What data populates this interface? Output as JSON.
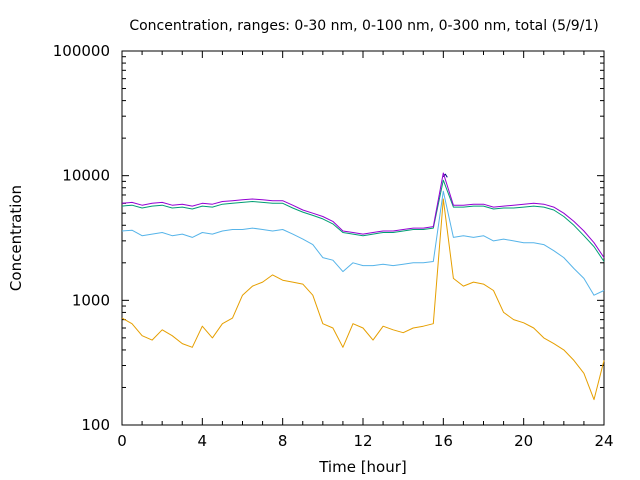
{
  "chart_data": {
    "type": "line",
    "title": "Concentration, ranges: 0-30 nm, 0-100 nm, 0-300 nm, total (5/9/1)",
    "xlabel": "Time [hour]",
    "ylabel": "Concentration",
    "xlim": [
      0,
      24
    ],
    "ylim": [
      100,
      100000
    ],
    "yscale": "log",
    "grid": false,
    "legend": "none",
    "x_ticks": [
      0,
      4,
      8,
      12,
      16,
      20,
      24
    ],
    "x_tick_labels": [
      "0",
      "4",
      "8",
      "12",
      "16",
      "20",
      "24"
    ],
    "y_ticks": [
      100,
      1000,
      10000,
      100000
    ],
    "y_tick_labels": [
      "100",
      "1000",
      "10000",
      "100000"
    ],
    "series": [
      {
        "color": "#e69f00",
        "x": [
          0,
          0.5,
          1,
          1.5,
          2,
          2.5,
          3,
          3.5,
          4,
          4.5,
          5,
          5.5,
          6,
          6.5,
          7,
          7.5,
          8,
          8.5,
          9,
          9.5,
          10,
          10.5,
          11,
          11.5,
          12,
          12.5,
          13,
          13.5,
          14,
          14.5,
          15,
          15.5,
          16,
          16.5,
          17,
          17.5,
          18,
          18.5,
          19,
          19.5,
          20,
          20.5,
          21,
          21.5,
          22,
          22.5,
          23,
          23.5,
          24
        ],
        "y": [
          720,
          650,
          520,
          480,
          580,
          520,
          450,
          420,
          620,
          500,
          650,
          720,
          1100,
          1300,
          1400,
          1600,
          1450,
          1400,
          1350,
          1100,
          650,
          600,
          420,
          650,
          600,
          480,
          620,
          580,
          550,
          600,
          620,
          650,
          6500,
          1500,
          1300,
          1400,
          1350,
          1200,
          800,
          700,
          660,
          600,
          500,
          450,
          400,
          330,
          260,
          160,
          330
        ]
      },
      {
        "color": "#56b4e9",
        "x": [
          0,
          0.5,
          1,
          1.5,
          2,
          2.5,
          3,
          3.5,
          4,
          4.5,
          5,
          5.5,
          6,
          6.5,
          7,
          7.5,
          8,
          8.5,
          9,
          9.5,
          10,
          10.5,
          11,
          11.5,
          12,
          12.5,
          13,
          13.5,
          14,
          14.5,
          15,
          15.5,
          16,
          16.5,
          17,
          17.5,
          18,
          18.5,
          19,
          19.5,
          20,
          20.5,
          21,
          21.5,
          22,
          22.5,
          23,
          23.5,
          24
        ],
        "y": [
          3600,
          3650,
          3300,
          3400,
          3500,
          3300,
          3400,
          3200,
          3500,
          3400,
          3600,
          3700,
          3700,
          3800,
          3700,
          3600,
          3700,
          3400,
          3100,
          2800,
          2200,
          2100,
          1700,
          2000,
          1900,
          1900,
          1950,
          1900,
          1950,
          2000,
          2000,
          2050,
          7500,
          3200,
          3300,
          3200,
          3300,
          3000,
          3100,
          3000,
          2900,
          2900,
          2800,
          2500,
          2200,
          1800,
          1500,
          1100,
          1200
        ]
      },
      {
        "color": "#009e73",
        "x": [
          0,
          0.5,
          1,
          1.5,
          2,
          2.5,
          3,
          3.5,
          4,
          4.5,
          5,
          5.5,
          6,
          6.5,
          7,
          7.5,
          8,
          8.5,
          9,
          9.5,
          10,
          10.5,
          11,
          11.5,
          12,
          12.5,
          13,
          13.5,
          14,
          14.5,
          15,
          15.5,
          16,
          16.5,
          17,
          17.5,
          18,
          18.5,
          19,
          19.5,
          20,
          20.5,
          21,
          21.5,
          22,
          22.5,
          23,
          23.5,
          24
        ],
        "y": [
          5700,
          5800,
          5500,
          5700,
          5800,
          5500,
          5600,
          5400,
          5700,
          5600,
          5900,
          6000,
          6100,
          6200,
          6100,
          6000,
          6000,
          5500,
          5100,
          4800,
          4500,
          4100,
          3500,
          3400,
          3300,
          3400,
          3500,
          3500,
          3600,
          3700,
          3700,
          3800,
          9200,
          5600,
          5600,
          5700,
          5700,
          5400,
          5500,
          5500,
          5600,
          5700,
          5600,
          5300,
          4700,
          4000,
          3300,
          2700,
          2050
        ]
      },
      {
        "color": "#000080",
        "x": [
          16,
          16.1,
          16.2
        ],
        "y": [
          9800,
          10300,
          9700
        ]
      },
      {
        "color": "#9400d3",
        "x": [
          0,
          0.5,
          1,
          1.5,
          2,
          2.5,
          3,
          3.5,
          4,
          4.5,
          5,
          5.5,
          6,
          6.5,
          7,
          7.5,
          8,
          8.5,
          9,
          9.5,
          10,
          10.5,
          11,
          11.5,
          12,
          12.5,
          13,
          13.5,
          14,
          14.5,
          15,
          15.5,
          16,
          16.5,
          17,
          17.5,
          18,
          18.5,
          19,
          19.5,
          20,
          20.5,
          21,
          21.5,
          22,
          22.5,
          23,
          23.5,
          24
        ],
        "y": [
          6000,
          6100,
          5800,
          6000,
          6100,
          5800,
          5900,
          5700,
          6000,
          5900,
          6200,
          6300,
          6400,
          6500,
          6400,
          6300,
          6300,
          5800,
          5300,
          5000,
          4700,
          4300,
          3600,
          3500,
          3400,
          3500,
          3600,
          3600,
          3700,
          3800,
          3800,
          3900,
          10500,
          5800,
          5800,
          5900,
          5900,
          5600,
          5700,
          5800,
          5900,
          6000,
          5900,
          5600,
          5000,
          4300,
          3600,
          2900,
          2200
        ]
      }
    ]
  }
}
